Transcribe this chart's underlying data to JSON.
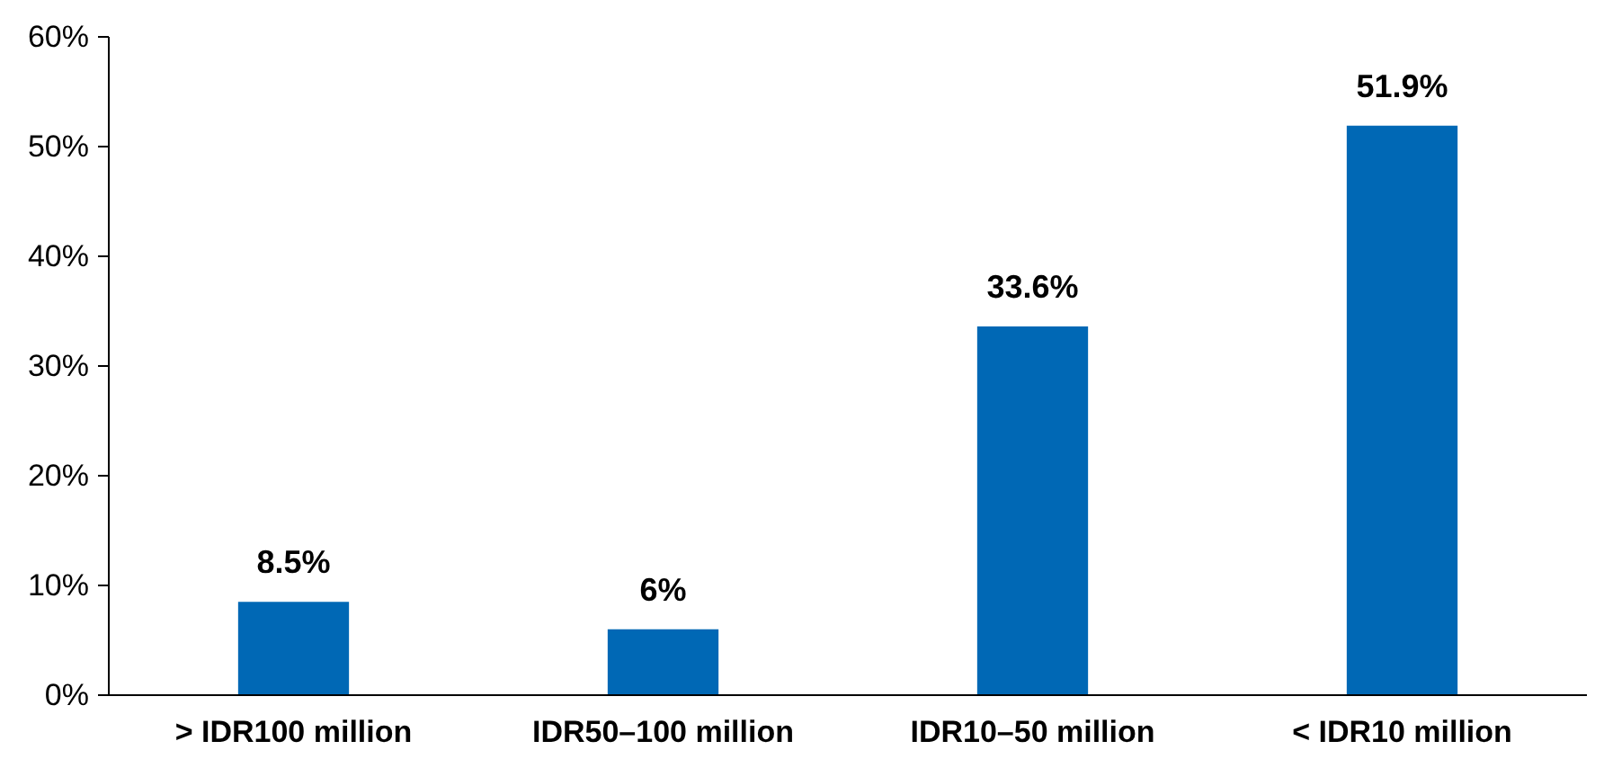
{
  "chart_data": {
    "type": "bar",
    "categories": [
      "> IDR100 million",
      "IDR50–100 million",
      "IDR10–50 million",
      "< IDR10 million"
    ],
    "values": [
      8.5,
      6,
      33.6,
      51.9
    ],
    "value_labels": [
      "8.5%",
      "6%",
      "33.6%",
      "51.9%"
    ],
    "color": "#0068b5",
    "ylim": [
      0,
      60
    ],
    "yticks": [
      {
        "value": 0,
        "label": "0%"
      },
      {
        "value": 10,
        "label": "10%"
      },
      {
        "value": 20,
        "label": "20%"
      },
      {
        "value": 30,
        "label": "30%"
      },
      {
        "value": 40,
        "label": "40%"
      },
      {
        "value": 50,
        "label": "50%"
      },
      {
        "value": 60,
        "label": "60%"
      }
    ],
    "grid": false
  }
}
